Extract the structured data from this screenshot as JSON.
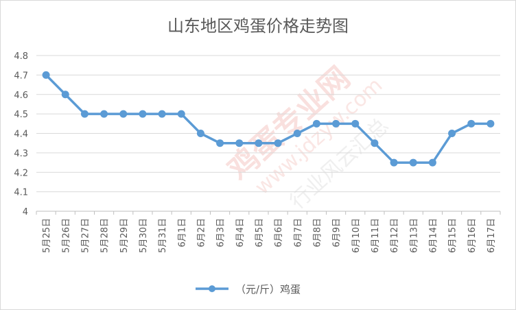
{
  "chart_data": {
    "type": "line",
    "title": "山东地区鸡蛋价格走势图",
    "xlabel": "",
    "ylabel": "",
    "categories": [
      "5月25日",
      "5月26日",
      "5月27日",
      "5月28日",
      "5月29日",
      "5月30日",
      "5月31日",
      "6月1日",
      "6月2日",
      "6月3日",
      "6月4日",
      "6月5日",
      "6月6日",
      "6月7日",
      "6月8日",
      "6月9日",
      "6月10日",
      "6月11日",
      "6月12日",
      "6月13日",
      "6月14日",
      "6月15日",
      "6月16日",
      "6月17日"
    ],
    "series": [
      {
        "name": "（元/斤）鸡蛋",
        "values": [
          4.7,
          4.6,
          4.5,
          4.5,
          4.5,
          4.5,
          4.5,
          4.5,
          4.4,
          4.35,
          4.35,
          4.35,
          4.35,
          4.4,
          4.45,
          4.45,
          4.45,
          4.35,
          4.25,
          4.25,
          4.25,
          4.4,
          4.45,
          4.45
        ]
      }
    ],
    "ylim": [
      4,
      4.8
    ],
    "yticks": [
      4,
      4.1,
      4.2,
      4.3,
      4.4,
      4.5,
      4.6,
      4.7,
      4.8
    ],
    "ytick_labels": [
      "4",
      "4.1",
      "4.2",
      "4.3",
      "4.4",
      "4.5",
      "4.6",
      "4.7",
      "4.8"
    ],
    "grid": true,
    "legend_position": "bottom",
    "colors": {
      "series": "#5b9bd5",
      "grid": "#d9d9d9",
      "text": "#595959"
    }
  },
  "watermark": {
    "text": "鸡蛋专业网",
    "url": "www.jdzyw.com",
    "slogan": "行业风云汇总",
    "color": "#f4c7c3"
  }
}
